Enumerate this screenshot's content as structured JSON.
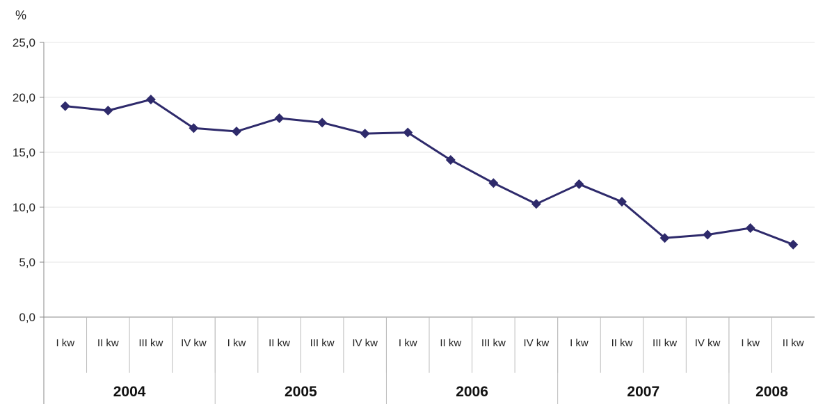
{
  "chart_data": {
    "type": "line",
    "ylabel": "%",
    "ylim": [
      0,
      25
    ],
    "y_ticks": [
      "0,0",
      "5,0",
      "10,0",
      "15,0",
      "20,0",
      "25,0"
    ],
    "grid": true,
    "categories": [
      "I kw",
      "II kw",
      "III kw",
      "IV kw",
      "I kw",
      "II kw",
      "III kw",
      "IV kw",
      "I kw",
      "II kw",
      "III kw",
      "IV kw",
      "I kw",
      "II kw",
      "III kw",
      "IV kw",
      "I kw",
      "II kw"
    ],
    "years": [
      {
        "label": "2004",
        "quarters": 4
      },
      {
        "label": "2005",
        "quarters": 4
      },
      {
        "label": "2006",
        "quarters": 4
      },
      {
        "label": "2007",
        "quarters": 4
      },
      {
        "label": "2008",
        "quarters": 2
      }
    ],
    "series": [
      {
        "values": [
          19.2,
          18.8,
          19.8,
          17.2,
          16.9,
          18.1,
          17.7,
          16.7,
          16.8,
          14.3,
          12.2,
          10.3,
          12.1,
          10.5,
          7.2,
          7.5,
          8.1,
          6.6
        ],
        "color": "#2e2a6b"
      }
    ]
  }
}
